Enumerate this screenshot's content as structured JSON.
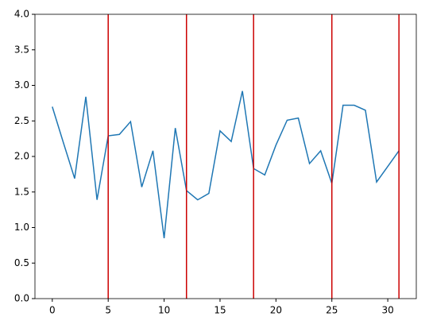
{
  "chart_data": {
    "type": "line",
    "x": [
      0,
      1,
      2,
      3,
      4,
      5,
      6,
      7,
      8,
      9,
      10,
      11,
      12,
      13,
      14,
      15,
      16,
      17,
      18,
      19,
      20,
      21,
      22,
      23,
      24,
      25,
      26,
      27,
      28,
      29,
      30,
      31
    ],
    "series": [
      {
        "color": "#1f77b4",
        "values": [
          2.7,
          2.19,
          1.69,
          2.84,
          1.39,
          2.29,
          2.31,
          2.49,
          1.57,
          2.08,
          0.85,
          2.4,
          1.52,
          1.39,
          1.48,
          2.36,
          2.21,
          2.92,
          1.83,
          1.74,
          2.16,
          2.51,
          2.54,
          1.9,
          2.08,
          1.62,
          2.72,
          2.72,
          2.65,
          1.64,
          1.86,
          2.08
        ]
      }
    ],
    "vlines": {
      "x": [
        5,
        12,
        18,
        25,
        31
      ],
      "color": "#cc0000"
    },
    "xlim": [
      -1.55,
      32.55
    ],
    "xticks": [
      0,
      5,
      10,
      15,
      20,
      25,
      30
    ],
    "ylim": [
      0,
      4
    ],
    "yticks": [
      {
        "value": 0,
        "label": "0.0"
      },
      0.5,
      {
        "value": 1,
        "label": "1.0"
      },
      1.5,
      {
        "value": 2,
        "label": "2.0"
      },
      2.5,
      {
        "value": 3,
        "label": "3.0"
      },
      3.5,
      {
        "value": 4,
        "label": "4.0"
      }
    ]
  }
}
